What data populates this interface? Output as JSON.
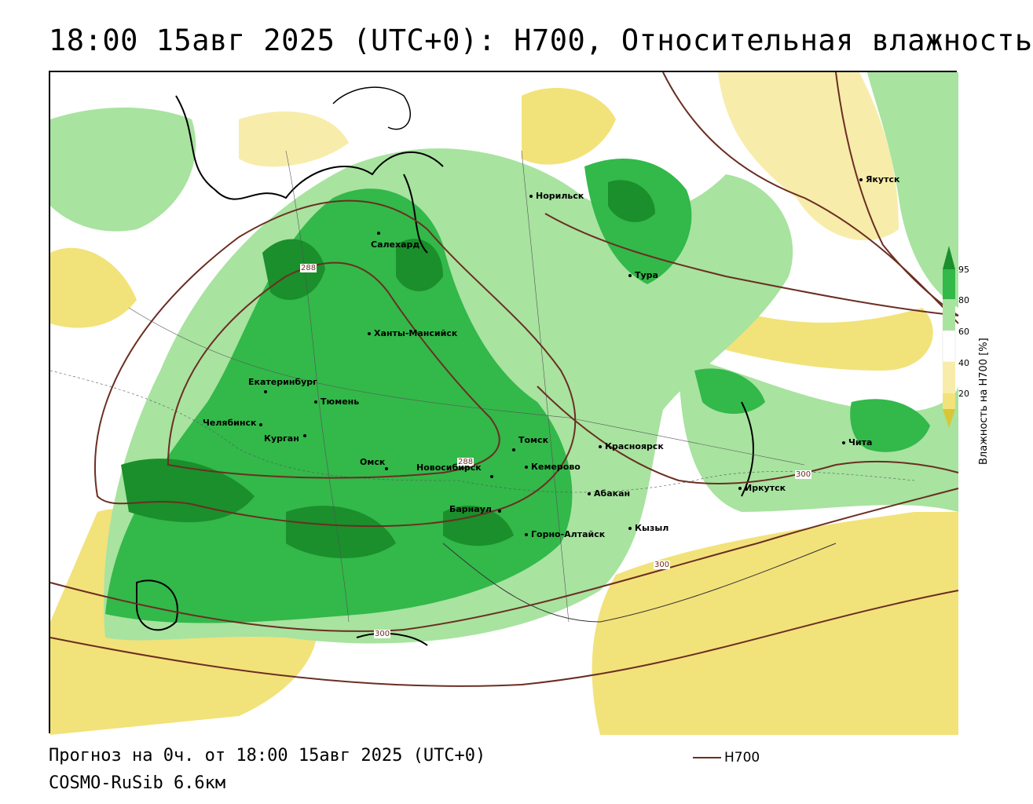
{
  "title": "18:00 15авг 2025 (UTC+0): H700, Относительная влажность",
  "footer": {
    "forecast": "Прогноз на 0ч. от 18:00 15авг 2025 (UTC+0)",
    "model": "COSMO-RuSib 6.6км",
    "isoline_label": "H700"
  },
  "legend": {
    "title": "Влажность на H700 [%]",
    "ticks": [
      "95",
      "80",
      "60",
      "40",
      "20"
    ],
    "colors": {
      "95": "#1a8f2b",
      "80": "#33b84a",
      "60": "#a8e3a0",
      "40": "#ffffff",
      "20": "#f2e27a",
      "low": "#d9c635"
    }
  },
  "cities": [
    {
      "name": "Якутск"
    },
    {
      "name": "Норильск"
    },
    {
      "name": "Салехард"
    },
    {
      "name": "Тура"
    },
    {
      "name": "Ханты-Мансийск"
    },
    {
      "name": "Екатеринбург"
    },
    {
      "name": "Тюмень"
    },
    {
      "name": "Челябинск"
    },
    {
      "name": "Курган"
    },
    {
      "name": "Омск"
    },
    {
      "name": "Новосибирск"
    },
    {
      "name": "Томск"
    },
    {
      "name": "Кемерово"
    },
    {
      "name": "Красноярск"
    },
    {
      "name": "Чита"
    },
    {
      "name": "Иркутск"
    },
    {
      "name": "Абакан"
    },
    {
      "name": "Барнаул"
    },
    {
      "name": "Горно-Алтайск"
    },
    {
      "name": "Кызыл"
    }
  ],
  "isolines": [
    "288",
    "288",
    "300",
    "300",
    "300"
  ]
}
